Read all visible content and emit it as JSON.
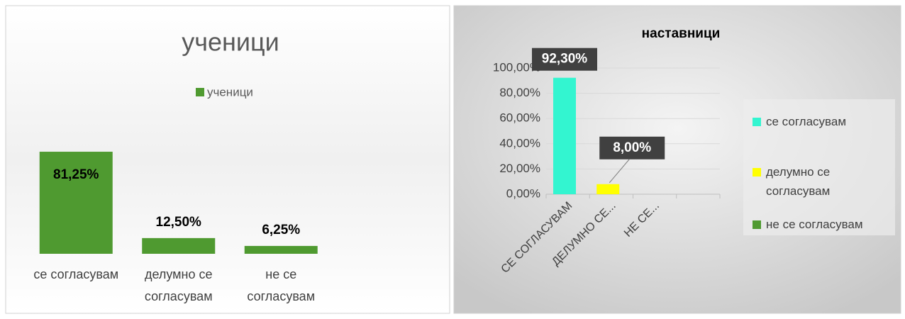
{
  "chart_data": [
    {
      "type": "bar",
      "title": "ученици",
      "legend": "ученици",
      "color": "#4f9a30",
      "categories": [
        "се согласувам",
        "делумно се согласувам",
        "не се согласувам"
      ],
      "values": [
        81.25,
        12.5,
        6.25
      ],
      "value_labels": [
        "81,25%",
        "12,50%",
        "6,25%"
      ]
    },
    {
      "type": "bar",
      "title": "наставници",
      "categories": [
        "СЕ СОГЛАСУВАМ",
        "ДЕЛУМНО СЕ...",
        "НЕ СЕ...",
        null
      ],
      "ylim": [
        0,
        100
      ],
      "yticks": [
        {
          "value": 0,
          "label": "0,00%"
        },
        {
          "value": 20,
          "label": "20,00%"
        },
        {
          "value": 40,
          "label": "40,00%"
        },
        {
          "value": 60,
          "label": "60,00%"
        },
        {
          "value": 80,
          "label": "80,00%"
        },
        {
          "value": 100,
          "label": "100,00%"
        }
      ],
      "grid": true,
      "legend_position": "right",
      "series": [
        {
          "name": "се согласувам",
          "color": "#33f5d0",
          "values": [
            92.3,
            null,
            null,
            null
          ],
          "value_labels": [
            "92,30%",
            null,
            null,
            null
          ]
        },
        {
          "name": "делумно се согласувам",
          "color": "#ffff00",
          "values": [
            null,
            8,
            null,
            null
          ],
          "value_labels": [
            null,
            "8,00%",
            null,
            null
          ]
        },
        {
          "name": "не се согласувам",
          "color": "#4f9a30",
          "values": [
            null,
            null,
            null,
            null
          ]
        }
      ]
    }
  ]
}
